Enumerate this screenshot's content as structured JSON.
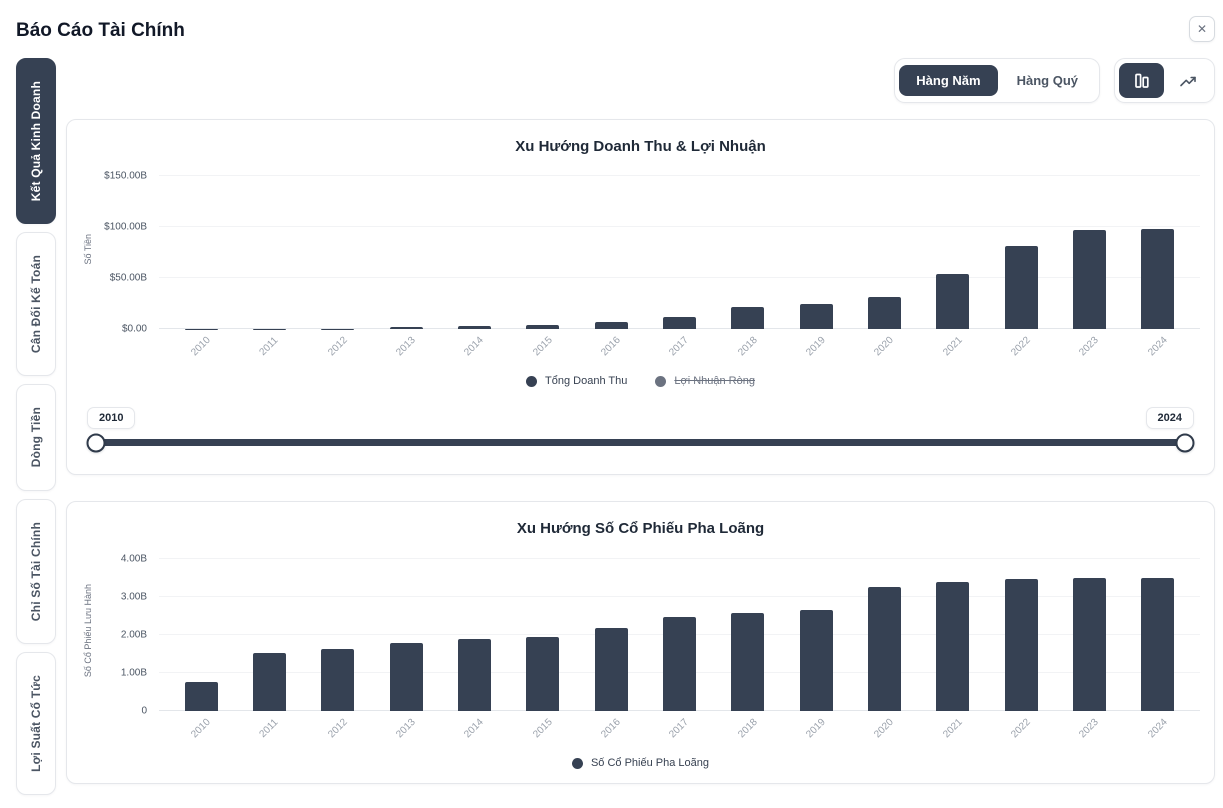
{
  "header": {
    "title": "Báo Cáo Tài Chính",
    "close_icon": "✕"
  },
  "toolbar": {
    "period_options": [
      {
        "label": "Hàng Năm",
        "active": true
      },
      {
        "label": "Hàng Quý",
        "active": false
      }
    ],
    "view_options": [
      {
        "icon": "bar-chart-icon",
        "active": true
      },
      {
        "icon": "trend-line-icon",
        "active": false
      }
    ]
  },
  "sidebar": {
    "tabs": [
      {
        "label": "Kết Quả Kinh Doanh",
        "active": true
      },
      {
        "label": "Cân Đối Kế Toán",
        "active": false
      },
      {
        "label": "Dòng Tiền",
        "active": false
      },
      {
        "label": "Chỉ Số Tài Chính",
        "active": false
      },
      {
        "label": "Lợi Suất Cổ Tức",
        "active": false
      }
    ]
  },
  "range_slider": {
    "start_label": "2010",
    "end_label": "2024"
  },
  "colors": {
    "accent": "#364153",
    "legend_disabled": "#6b7280",
    "grid": "#f2f3f5",
    "axis_tick_text": "#4b5563",
    "x_tick_text": "#9aa1ab"
  },
  "chart_data": [
    {
      "type": "bar",
      "title": "Xu Hướng Doanh Thu & Lợi Nhuận",
      "ylabel": "Số Tiền",
      "categories": [
        "2010",
        "2011",
        "2012",
        "2013",
        "2014",
        "2015",
        "2016",
        "2017",
        "2018",
        "2019",
        "2020",
        "2021",
        "2022",
        "2023",
        "2024"
      ],
      "series": [
        {
          "name": "Tổng Doanh Thu",
          "color": "#364153",
          "visible": true,
          "values": [
            0.12,
            0.2,
            0.41,
            2.01,
            3.2,
            4.05,
            7.0,
            11.76,
            21.46,
            24.58,
            31.54,
            53.82,
            81.46,
            96.77,
            97.69
          ]
        },
        {
          "name": "Lợi Nhuận Ròng",
          "color": "#6b7280",
          "visible": false,
          "values": []
        }
      ],
      "yticks": [
        {
          "label": "$0.00",
          "value": 0
        },
        {
          "label": "$50.00B",
          "value": 50
        },
        {
          "label": "$100.00B",
          "value": 100
        },
        {
          "label": "$150.00B",
          "value": 150
        }
      ],
      "ymax": 157,
      "unit": "USD billions",
      "grid": true,
      "legend_position": "bottom"
    },
    {
      "type": "bar",
      "title": "Xu Hướng Số Cổ Phiếu Pha Loãng",
      "ylabel": "Số Cổ Phiếu Lưu Hành",
      "categories": [
        "2010",
        "2011",
        "2012",
        "2013",
        "2014",
        "2015",
        "2016",
        "2017",
        "2018",
        "2019",
        "2020",
        "2021",
        "2022",
        "2023",
        "2024"
      ],
      "series": [
        {
          "name": "Số Cổ Phiếu Pha Loãng",
          "color": "#364153",
          "visible": true,
          "values": [
            0.77,
            1.53,
            1.63,
            1.79,
            1.89,
            1.93,
            2.18,
            2.48,
            2.56,
            2.66,
            3.25,
            3.39,
            3.47,
            3.49,
            3.5
          ]
        }
      ],
      "yticks": [
        {
          "label": "0",
          "value": 0
        },
        {
          "label": "1.00B",
          "value": 1
        },
        {
          "label": "2.00B",
          "value": 2
        },
        {
          "label": "3.00B",
          "value": 3
        },
        {
          "label": "4.00B",
          "value": 4
        }
      ],
      "ymax": 4.2,
      "unit": "shares billions",
      "grid": true,
      "legend_position": "bottom"
    }
  ]
}
